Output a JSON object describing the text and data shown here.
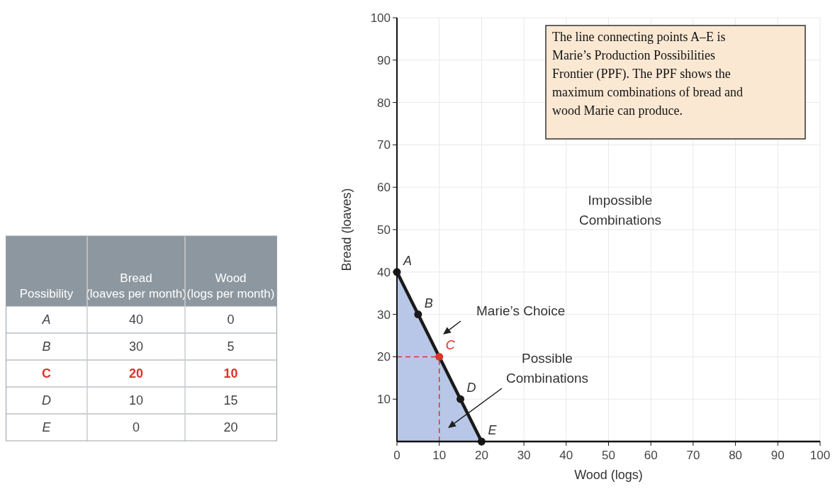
{
  "chart_data": [
    {
      "type": "other",
      "xlabel": "Possibility",
      "categories": [
        "A",
        "B",
        "C",
        "D",
        "E"
      ],
      "series": [
        {
          "name": "Bread (loaves per month)",
          "colors": [
            "#444444",
            "#444444",
            "#e0302a",
            "#444444",
            "#444444"
          ],
          "values": [
            40,
            30,
            20,
            10,
            0
          ]
        },
        {
          "name": "Wood (logs per month)",
          "colors": [
            "#444444",
            "#444444",
            "#e0302a",
            "#444444",
            "#444444"
          ],
          "values": [
            0,
            5,
            10,
            15,
            20
          ]
        }
      ],
      "data_labels": true
    },
    {
      "type": "line",
      "xlabel": "Wood (logs)",
      "ylabel": "Bread (loaves)",
      "x": [
        0,
        5,
        10,
        15,
        20
      ],
      "series": [
        {
          "type": "area",
          "marker": "circle",
          "color": "#1a1a1a",
          "colors": [
            "#1a1a1a",
            "#1a1a1a",
            "#e0302a",
            "#1a1a1a",
            "#1a1a1a"
          ],
          "values": [
            40,
            30,
            20,
            10,
            0
          ]
        }
      ],
      "xlim": [
        0,
        100
      ],
      "ylim": [
        0,
        100
      ],
      "xticks": [
        0,
        10,
        20,
        30,
        40,
        50,
        60,
        70,
        80,
        90,
        100
      ],
      "yticks": [
        10,
        20,
        30,
        40,
        50,
        60,
        70,
        80,
        90,
        100
      ],
      "grid": true,
      "line_style": "solid",
      "ref_lines": [
        {
          "axis": "x",
          "value": 10,
          "color": "#e0302a",
          "line_style": "dashed"
        },
        {
          "axis": "y",
          "value": 20,
          "color": "#e0302a",
          "line_style": "dashed"
        }
      ],
      "annotations": [
        "The line connecting points A–E is Marie’s Production Possibilities Frontier (PPF). The PPF shows the maximum combinations of bread and wood Marie can produce.",
        "Impossible Combinations",
        "Marie’s Choice",
        "Possible Combinations",
        {
          "text": "A",
          "x": 0,
          "y": 40
        },
        {
          "text": "B",
          "x": 5,
          "y": 30
        },
        {
          "text": "C",
          "x": 10,
          "y": 20
        },
        {
          "text": "D",
          "x": 15,
          "y": 10
        },
        {
          "text": "E",
          "x": 20,
          "y": 0
        }
      ]
    }
  ]
}
